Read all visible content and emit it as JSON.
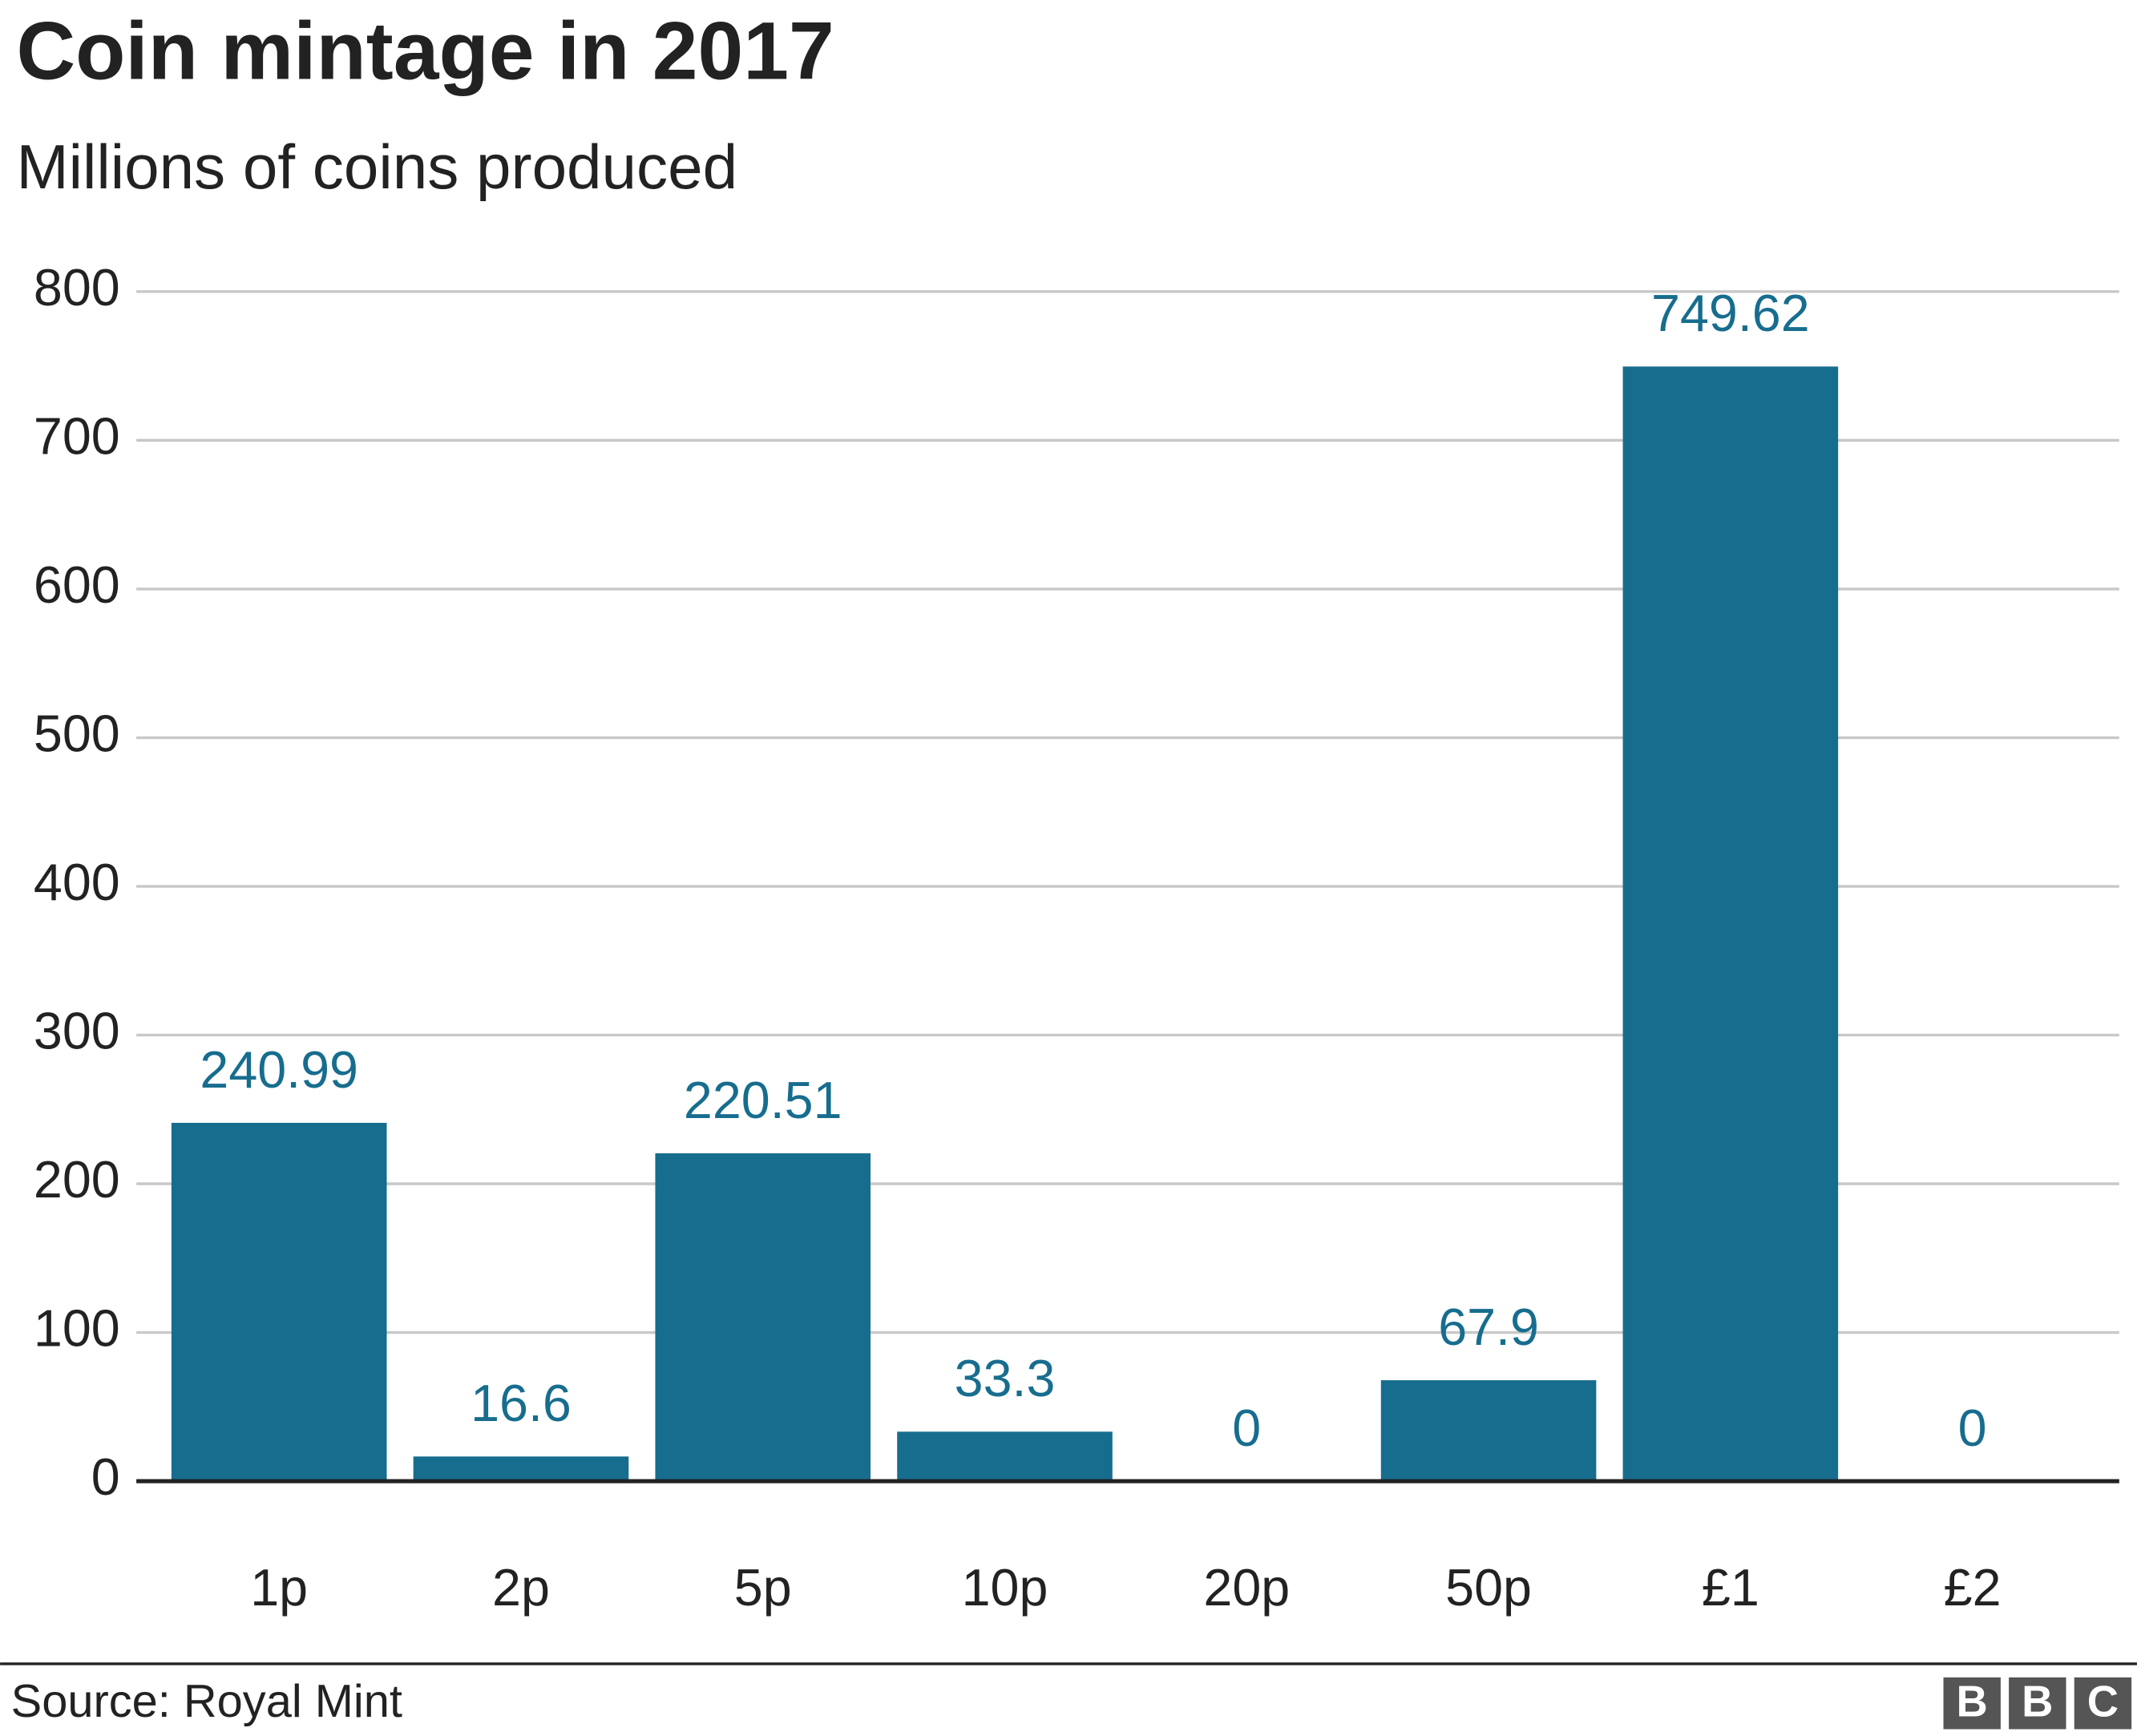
{
  "chart_data": {
    "type": "bar",
    "title": "Coin mintage in 2017",
    "subtitle": "Millions of coins produced",
    "categories": [
      "1p",
      "2p",
      "5p",
      "10p",
      "20p",
      "50p",
      "£1",
      "£2"
    ],
    "values": [
      240.99,
      16.6,
      220.51,
      33.3,
      0,
      67.9,
      749.62,
      0
    ],
    "color": "#176d8e",
    "ylim": [
      0,
      800
    ],
    "yticks": [
      0,
      100,
      200,
      300,
      400,
      500,
      600,
      700,
      800
    ],
    "grid": true,
    "source": "Source: Royal Mint",
    "logo": [
      "B",
      "B",
      "C"
    ]
  }
}
